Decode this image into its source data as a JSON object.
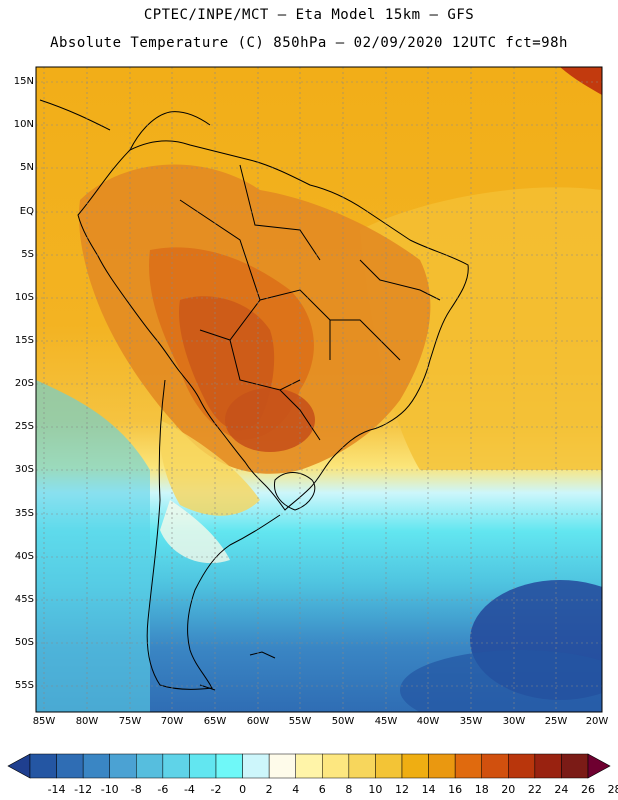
{
  "header": {
    "title_line1": "CPTEC/INPE/MCT –  Eta Model 15km – GFS",
    "title_line2": "Absolute Temperature (C) 850hPa – 02/09/2020 12UTC fct=98h"
  },
  "map": {
    "latitude_labels": [
      "15N",
      "10N",
      "5N",
      "EQ",
      "5S",
      "10S",
      "15S",
      "20S",
      "25S",
      "30S",
      "35S",
      "40S",
      "45S",
      "50S",
      "55S"
    ],
    "longitude_labels": [
      "85W",
      "80W",
      "75W",
      "70W",
      "65W",
      "60W",
      "55W",
      "50W",
      "45W",
      "40W",
      "35W",
      "30W",
      "25W",
      "20W"
    ]
  },
  "colorbar": {
    "labels": [
      "-14",
      "-12",
      "-10",
      "-8",
      "-6",
      "-4",
      "-2",
      "0",
      "2",
      "4",
      "6",
      "8",
      "10",
      "12",
      "14",
      "16",
      "18",
      "20",
      "22",
      "24",
      "26",
      "28"
    ],
    "colors": [
      "#1f3f8f",
      "#2456a3",
      "#2f6db4",
      "#3a86c4",
      "#4ba2d3",
      "#56bede",
      "#5fd3e8",
      "#62e6f0",
      "#6ff8f8",
      "#cdf6fb",
      "#fefbea",
      "#fff4a8",
      "#fde780",
      "#f7d65c",
      "#f3c436",
      "#efae12",
      "#ea9810",
      "#e06a0e",
      "#d1500e",
      "#b9360c",
      "#992210",
      "#7b1b16",
      "#6e0030"
    ]
  },
  "colors": {
    "ocean_north": "#f2ae18",
    "land_warm": "#e2821e",
    "hot_core": "#cc5a18",
    "cold_south": "#2d63ad",
    "cyan_band": "#5fe0ec"
  }
}
